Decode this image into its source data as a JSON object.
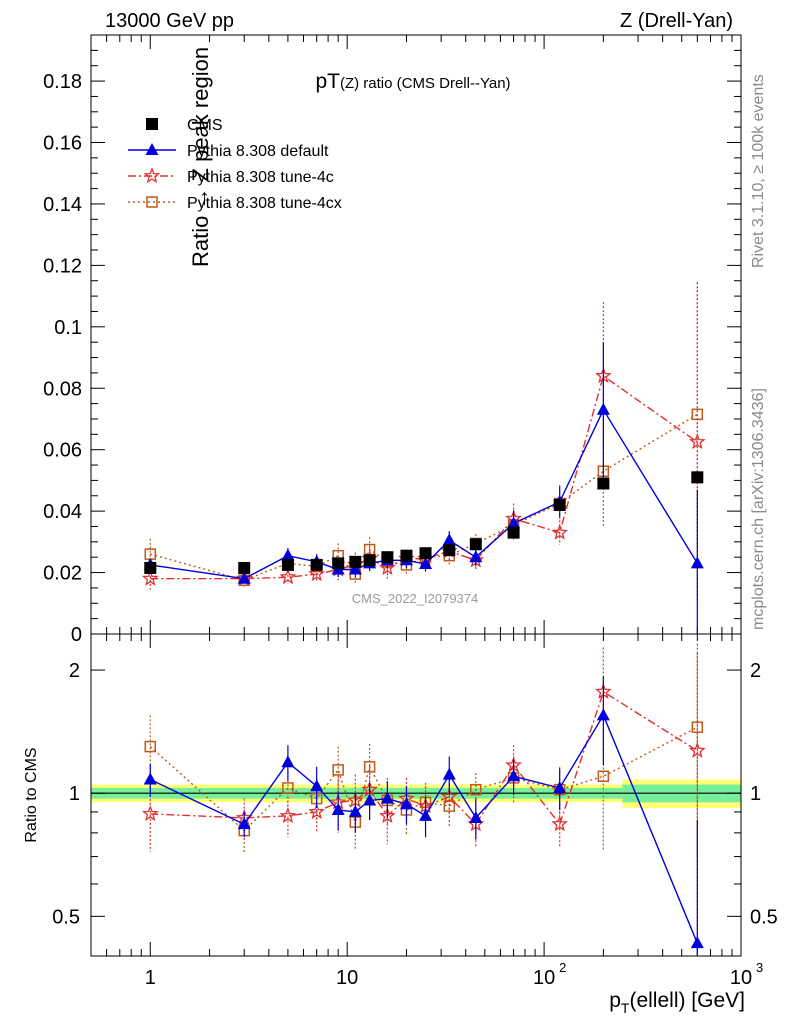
{
  "header": {
    "left": "13000 GeV pp",
    "right": "Z (Drell-Yan)"
  },
  "side_labels": {
    "rivet": "Rivet 3.1.10, ≥ 100k events",
    "mcplots": "mcplots.cern.ch [arXiv:1306.3436]"
  },
  "colors": {
    "cms": "#000000",
    "default": "#0000dd",
    "tune4c": "#e03030",
    "tune4cx": "#c05a1a",
    "band_inner": "#77ee99",
    "band_outer": "#ffff77"
  },
  "chart_data": [
    {
      "type": "scatter",
      "title": "pT(Z) ratio (CMS Drell--Yan)",
      "watermark": "CMS_2022_I2079374",
      "ylabel": "Ratio → Z peak region",
      "xlabel": "",
      "xscale": "log",
      "xlim": [
        0.5,
        1000
      ],
      "ylim": [
        0,
        0.195
      ],
      "yticks": [
        "0",
        "0.02",
        "0.04",
        "0.06",
        "0.08",
        "0.1",
        "0.12",
        "0.14",
        "0.16",
        "0.18"
      ],
      "legend_position": "top-left",
      "x": [
        1,
        3,
        5,
        7,
        9,
        11,
        13,
        16,
        20,
        25,
        33,
        45,
        70,
        120,
        200,
        600
      ],
      "series": [
        {
          "name": "CMS",
          "values": [
            0.0215,
            0.0215,
            0.0225,
            0.0225,
            0.023,
            0.0235,
            0.024,
            0.025,
            0.0255,
            0.0263,
            0.0273,
            0.0292,
            0.033,
            0.042,
            0.049,
            0.051
          ]
        },
        {
          "name": "Pythia 8.308 default",
          "values": [
            0.0225,
            0.018,
            0.0255,
            0.0235,
            0.021,
            0.021,
            0.023,
            0.024,
            0.024,
            0.0228,
            0.0305,
            0.025,
            0.036,
            0.043,
            0.073,
            0.023
          ],
          "errors": [
            0.002,
            0.0015,
            0.0025,
            0.0025,
            0.0025,
            0.0025,
            0.0025,
            0.0025,
            0.0025,
            0.0025,
            0.003,
            0.003,
            0.004,
            0.005,
            0.022,
            0.024
          ]
        },
        {
          "name": "Pythia 8.308 tune-4c",
          "values": [
            0.018,
            0.018,
            0.0185,
            0.0195,
            0.021,
            0.0225,
            0.0245,
            0.0215,
            0.0245,
            0.0245,
            0.027,
            0.024,
            0.0375,
            0.033,
            0.084,
            0.0625
          ],
          "errors": [
            0.0035,
            0.002,
            0.002,
            0.0025,
            0.0035,
            0.004,
            0.004,
            0.0035,
            0.003,
            0.003,
            0.003,
            0.003,
            0.005,
            0.004,
            0.024,
            0.052
          ]
        },
        {
          "name": "Pythia 8.308 tune-4cx",
          "values": [
            0.026,
            0.0175,
            0.023,
            0.022,
            0.0255,
            0.0195,
            0.0275,
            0.0235,
            0.0225,
            0.025,
            0.0255,
            0.0295,
            0.0355,
            0.0425,
            0.053,
            0.0715
          ],
          "errors": [
            0.005,
            0.0025,
            0.003,
            0.003,
            0.004,
            0.003,
            0.004,
            0.0035,
            0.003,
            0.003,
            0.003,
            0.003,
            0.005,
            0.006,
            0.018,
            0.043
          ]
        }
      ]
    },
    {
      "type": "scatter",
      "title": "",
      "ylabel": "Ratio to CMS",
      "xlabel": "p_T(ellell) [GeV]",
      "xscale": "log",
      "xlim": [
        0.5,
        1000
      ],
      "ylim": [
        0.4,
        2.45
      ],
      "yscale": "log",
      "yticks": [
        "0.5",
        "1",
        "2"
      ],
      "xticks": [
        "1",
        "10",
        "10²",
        "10³"
      ],
      "x": [
        1,
        3,
        5,
        7,
        9,
        11,
        13,
        16,
        20,
        25,
        33,
        45,
        70,
        120,
        200,
        600
      ],
      "reference_band": {
        "edges": [
          0.5,
          250,
          1000
        ],
        "inner": [
          0.03,
          0.05
        ],
        "outer": [
          0.05,
          0.08
        ]
      },
      "series": [
        {
          "name": "Pythia 8.308 default",
          "values": [
            1.08,
            0.84,
            1.19,
            1.04,
            0.91,
            0.9,
            0.96,
            0.97,
            0.94,
            0.88,
            1.11,
            0.87,
            1.1,
            1.03,
            1.55,
            0.43
          ],
          "errors": [
            0.1,
            0.06,
            0.12,
            0.12,
            0.1,
            0.1,
            0.1,
            0.1,
            0.1,
            0.1,
            0.12,
            0.1,
            0.11,
            0.12,
            0.38,
            0.43
          ]
        },
        {
          "name": "Pythia 8.308 tune-4c",
          "values": [
            0.89,
            0.87,
            0.88,
            0.9,
            0.95,
            0.96,
            1.02,
            0.88,
            0.97,
            0.93,
            0.98,
            0.84,
            1.17,
            0.84,
            1.77,
            1.27
          ],
          "errors": [
            0.17,
            0.1,
            0.1,
            0.1,
            0.15,
            0.15,
            0.15,
            0.13,
            0.12,
            0.11,
            0.1,
            0.1,
            0.14,
            0.1,
            0.5,
            1.05
          ]
        },
        {
          "name": "Pythia 8.308 tune-4cx",
          "values": [
            1.3,
            0.81,
            1.03,
            0.97,
            1.14,
            0.85,
            1.16,
            0.96,
            0.91,
            0.95,
            0.93,
            1.02,
            1.09,
            1.02,
            1.1,
            1.45
          ],
          "errors": [
            0.25,
            0.1,
            0.12,
            0.12,
            0.16,
            0.12,
            0.16,
            0.13,
            0.12,
            0.11,
            0.1,
            0.1,
            0.14,
            0.14,
            0.38,
            0.75
          ]
        }
      ]
    }
  ]
}
